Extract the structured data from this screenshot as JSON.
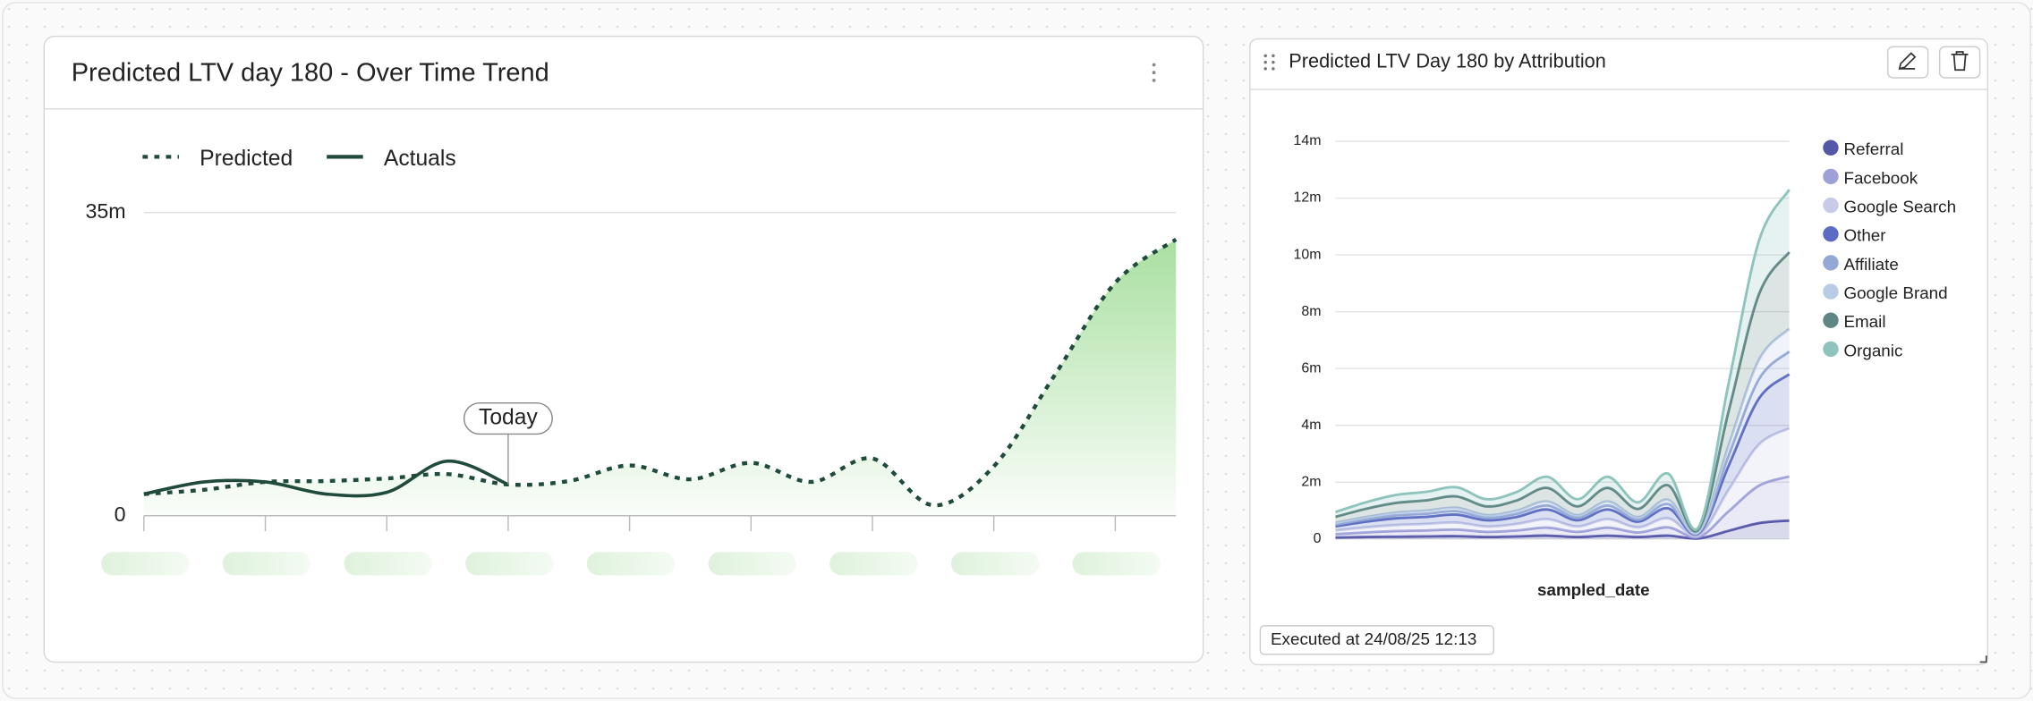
{
  "chart_data": [
    {
      "type": "line",
      "title": "Predicted LTV day 180 - Over Time Trend",
      "annotation": "Today",
      "categories": [
        null,
        null,
        null,
        null,
        null,
        null,
        null,
        null,
        null,
        null,
        null,
        null,
        null,
        null,
        null,
        null,
        null,
        null
      ],
      "series": [
        {
          "name": "Predicted",
          "color": "#1f4a3c",
          "line_style": "dotted",
          "area": true,
          "area_color": "#9fdc96",
          "values": [
            2500000,
            3000000,
            3900000,
            4000000,
            4300000,
            4800000,
            3600000,
            4000000,
            5800000,
            4200000,
            6100000,
            3900000,
            6600000,
            1200000,
            5700000,
            16200000,
            26900000,
            31900000
          ]
        },
        {
          "name": "Actuals",
          "color": "#1f4a3c",
          "line_style": "solid",
          "area": false,
          "values": [
            2500000,
            3900000,
            3900000,
            2500000,
            2700000,
            6300000,
            3600000,
            null,
            null,
            null,
            null,
            null,
            null,
            null,
            null,
            null,
            null,
            null
          ]
        }
      ],
      "ylim": [
        0,
        35000000
      ],
      "yticks": [
        0,
        {
          "value": 35000000,
          "label": "35m"
        }
      ],
      "grid": true
    },
    {
      "type": "area",
      "stacked": true,
      "title": "Predicted LTV Day 180 by Attribution",
      "xlabel": "sampled_date",
      "footer": "Executed at 24/08/25 12:13",
      "legend": "top-right",
      "categories": [
        null,
        null,
        null,
        null,
        null,
        null,
        null,
        null,
        null,
        null,
        null,
        null,
        null,
        null,
        null,
        null
      ],
      "series": [
        {
          "name": "Referral",
          "color": "#5456a8",
          "values": [
            50000,
            70000,
            80000,
            90000,
            100000,
            70000,
            90000,
            120000,
            70000,
            120000,
            70000,
            120000,
            20000,
            290000,
            560000,
            650000
          ]
        },
        {
          "name": "Facebook",
          "color": "#9ea1d8",
          "values": [
            120000,
            160000,
            200000,
            210000,
            230000,
            180000,
            210000,
            280000,
            180000,
            280000,
            160000,
            290000,
            50000,
            690000,
            1320000,
            1550000
          ]
        },
        {
          "name": "Google Search",
          "color": "#c7cbe8",
          "values": [
            130000,
            180000,
            210000,
            230000,
            250000,
            190000,
            230000,
            300000,
            190000,
            300000,
            180000,
            320000,
            60000,
            760000,
            1450000,
            1700000
          ]
        },
        {
          "name": "Other",
          "color": "#5b6cc2",
          "values": [
            150000,
            200000,
            240000,
            250000,
            280000,
            220000,
            250000,
            340000,
            220000,
            340000,
            200000,
            350000,
            60000,
            850000,
            1620000,
            1900000
          ]
        },
        {
          "name": "Affiliate",
          "color": "#94a8d6",
          "values": [
            60000,
            80000,
            100000,
            110000,
            120000,
            90000,
            110000,
            140000,
            90000,
            140000,
            80000,
            150000,
            30000,
            360000,
            680000,
            800000
          ]
        },
        {
          "name": "Google Brand",
          "color": "#b9cce6",
          "values": [
            60000,
            80000,
            100000,
            110000,
            120000,
            90000,
            110000,
            140000,
            90000,
            140000,
            80000,
            150000,
            30000,
            360000,
            680000,
            800000
          ]
        },
        {
          "name": "Email",
          "color": "#5f8683",
          "values": [
            210000,
            290000,
            340000,
            360000,
            400000,
            310000,
            360000,
            480000,
            310000,
            480000,
            290000,
            510000,
            90000,
            1210000,
            2310000,
            2700000
          ]
        },
        {
          "name": "Organic",
          "color": "#8fc4bd",
          "values": [
            170000,
            230000,
            280000,
            300000,
            320000,
            250000,
            300000,
            390000,
            250000,
            390000,
            230000,
            410000,
            70000,
            980000,
            1880000,
            2200000
          ]
        }
      ],
      "ylim": [
        0,
        14000000
      ],
      "yticks": [
        0,
        {
          "value": 2000000,
          "label": "2m"
        },
        {
          "value": 4000000,
          "label": "4m"
        },
        {
          "value": 6000000,
          "label": "6m"
        },
        {
          "value": 8000000,
          "label": "8m"
        },
        {
          "value": 10000000,
          "label": "10m"
        },
        {
          "value": 12000000,
          "label": "12m"
        },
        {
          "value": 14000000,
          "label": "14m"
        }
      ],
      "grid": true
    }
  ]
}
